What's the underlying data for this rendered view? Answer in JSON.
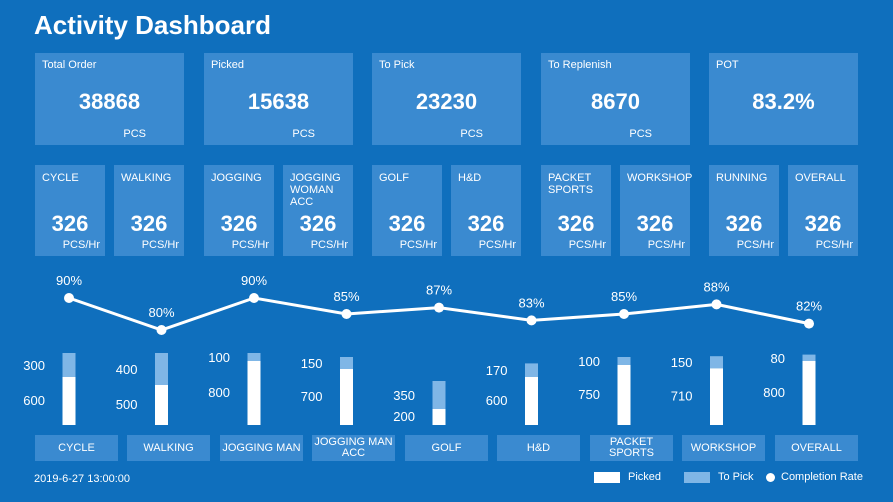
{
  "header": {
    "title": "Activity Dashboard"
  },
  "kpis": [
    {
      "label": "Total Order",
      "value": "38868",
      "unit": "PCS"
    },
    {
      "label": "Picked",
      "value": "15638",
      "unit": "PCS"
    },
    {
      "label": "To Pick",
      "value": "23230",
      "unit": "PCS"
    },
    {
      "label": "To Replenish",
      "value": "8670",
      "unit": "PCS"
    },
    {
      "label": "POT",
      "value": "83.2%",
      "unit": ""
    }
  ],
  "rates": [
    {
      "label": "CYCLE",
      "value": "326",
      "unit": "PCS/Hr"
    },
    {
      "label": "WALKING",
      "value": "326",
      "unit": "PCS/Hr"
    },
    {
      "label": "JOGGING",
      "value": "326",
      "unit": "PCS/Hr"
    },
    {
      "label": "JOGGING WOMAN ACC",
      "value": "326",
      "unit": "PCS/Hr"
    },
    {
      "label": "GOLF",
      "value": "326",
      "unit": "PCS/Hr"
    },
    {
      "label": "H&D",
      "value": "326",
      "unit": "PCS/Hr"
    },
    {
      "label": "PACKET SPORTS",
      "value": "326",
      "unit": "PCS/Hr"
    },
    {
      "label": "WORKSHOP",
      "value": "326",
      "unit": "PCS/Hr"
    },
    {
      "label": "RUNNING",
      "value": "326",
      "unit": "PCS/Hr"
    },
    {
      "label": "Overall",
      "value": "326",
      "unit": "PCS/Hr"
    }
  ],
  "chart_data": {
    "type": "bar",
    "categories": [
      "CYCLE",
      "WALKING",
      "JOGGING MAN",
      "JOGGING MAN ACC",
      "GOLF",
      "H&D",
      "PACKET SPORTS",
      "WORKSHOP",
      "Overall"
    ],
    "series": [
      {
        "name": "Picked",
        "values": [
          600,
          500,
          800,
          700,
          200,
          600,
          750,
          710,
          800
        ]
      },
      {
        "name": "To Pick",
        "values": [
          300,
          400,
          100,
          150,
          350,
          170,
          100,
          150,
          80
        ]
      },
      {
        "name": "Completion Rate",
        "values": [
          90,
          80,
          90,
          85,
          87,
          83,
          85,
          88,
          82
        ]
      }
    ],
    "rate_labels": [
      "90%",
      "80%",
      "90%",
      "85%",
      "87%",
      "83%",
      "85%",
      "88%",
      "82%"
    ],
    "stacked": true,
    "legend_position": "bottom-right",
    "colors": {
      "picked": "#ffffff",
      "to_pick": "#7fb6e6",
      "line": "#ffffff"
    }
  },
  "footer": {
    "timestamp": "2019-6-27   13:00:00"
  },
  "legend": {
    "picked": "Picked",
    "to_pick": "To Pick",
    "rate": "Completion Rate"
  }
}
